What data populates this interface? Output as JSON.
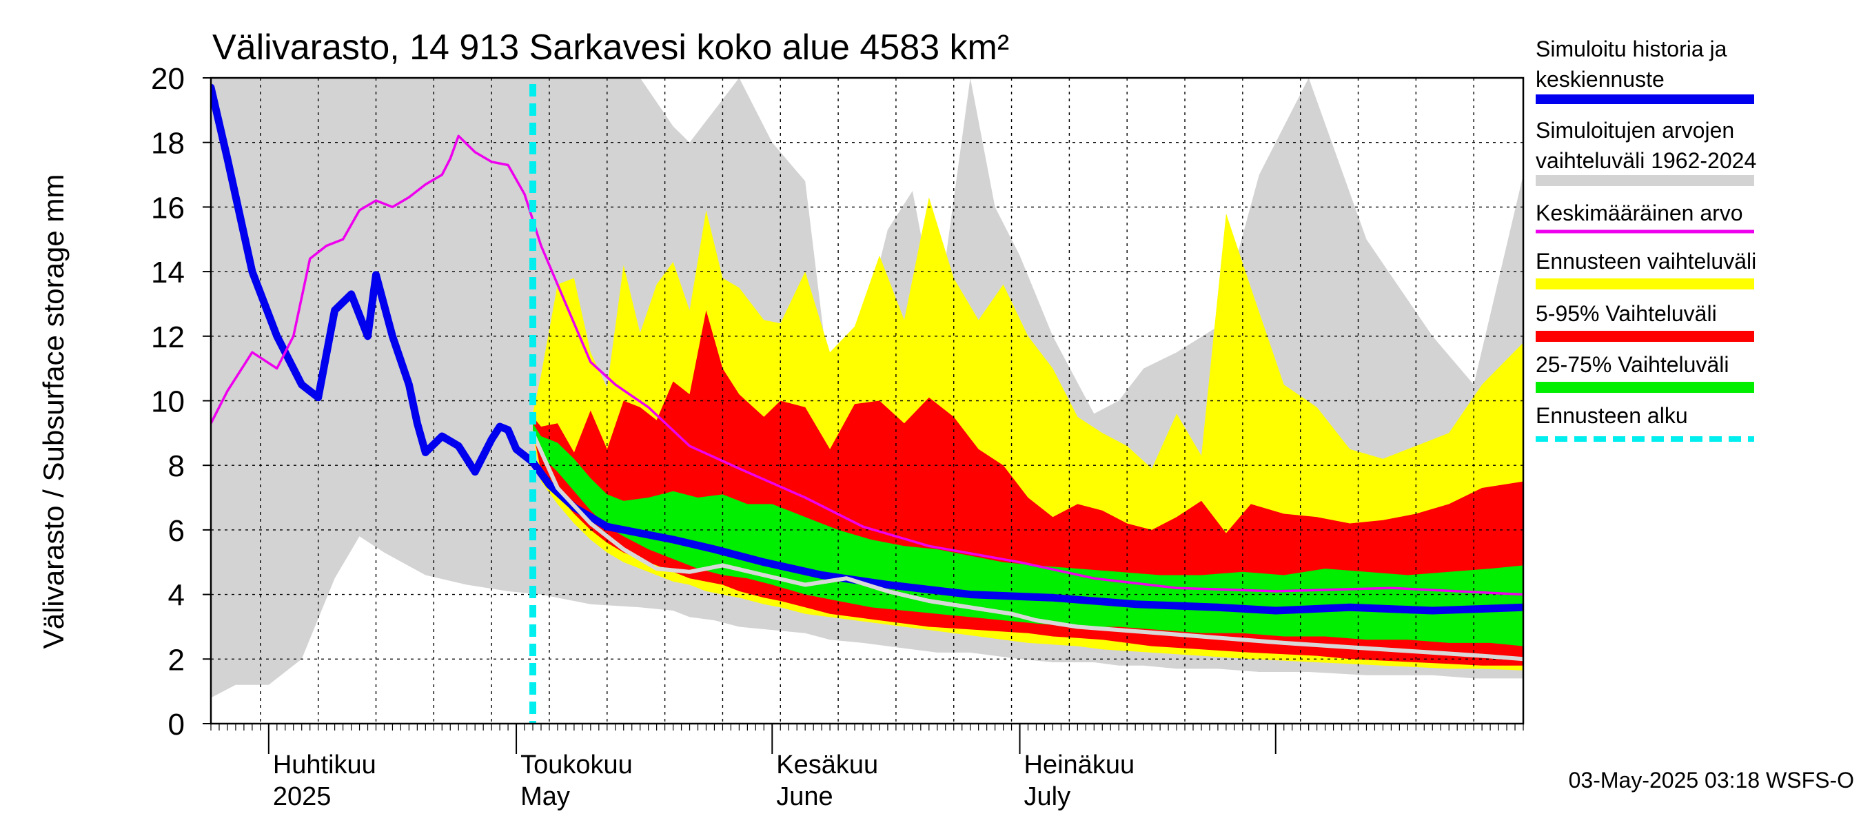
{
  "chart_data": {
    "type": "area",
    "title": "Välivarasto, 14 913 Sarkavesi koko alue 4583 km²",
    "ylabel": "Välivarasto / Subsurface storage  mm",
    "ylim": [
      0,
      20
    ],
    "yticks": [
      "0",
      "2",
      "4",
      "6",
      "8",
      "10",
      "12",
      "14",
      "16",
      "18",
      "20"
    ],
    "x_start": "2025-03-25",
    "x_end": "2025-08-31",
    "forecast_start": "2025-05-03",
    "grid": true,
    "legend_position": "right",
    "month_labels": [
      {
        "date": "2025-04-01",
        "line1": "Huhtikuu",
        "line2": "2025"
      },
      {
        "date": "2025-05-01",
        "line1": "Toukokuu",
        "line2": "May"
      },
      {
        "date": "2025-06-01",
        "line1": "Kesäkuu",
        "line2": "June"
      },
      {
        "date": "2025-07-01",
        "line1": "Heinäkuu",
        "line2": "July"
      }
    ],
    "series": [
      {
        "name": "Simuloitu historia ja keskiennuste",
        "kind": "line",
        "color": "#0000ee",
        "x": [
          "2025-03-25",
          "2025-03-27",
          "2025-03-30",
          "2025-04-02",
          "2025-04-05",
          "2025-04-07",
          "2025-04-09",
          "2025-04-11",
          "2025-04-13",
          "2025-04-14",
          "2025-04-16",
          "2025-04-18",
          "2025-04-19",
          "2025-04-20",
          "2025-04-22",
          "2025-04-24",
          "2025-04-26",
          "2025-04-28",
          "2025-04-29",
          "2025-04-30",
          "2025-05-01",
          "2025-05-03",
          "2025-05-05",
          "2025-05-08",
          "2025-05-12",
          "2025-05-16",
          "2025-05-20",
          "2025-05-25",
          "2025-05-31",
          "2025-06-07",
          "2025-06-15",
          "2025-06-25",
          "2025-07-05",
          "2025-07-15",
          "2025-07-25",
          "2025-08-01",
          "2025-08-10",
          "2025-08-20",
          "2025-08-31"
        ],
        "values": [
          19.7,
          17.5,
          14.0,
          12.0,
          10.5,
          10.1,
          12.8,
          13.3,
          12.0,
          13.9,
          12.0,
          10.5,
          9.3,
          8.4,
          8.9,
          8.6,
          7.8,
          8.8,
          9.2,
          9.1,
          8.5,
          8.1,
          7.4,
          6.7,
          6.1,
          5.9,
          5.7,
          5.4,
          5.0,
          4.6,
          4.3,
          4.0,
          3.9,
          3.7,
          3.6,
          3.5,
          3.6,
          3.5,
          3.6
        ]
      },
      {
        "name": "Keskimääräinen arvo",
        "kind": "line",
        "color": "#ee00ee",
        "x": [
          "2025-03-25",
          "2025-03-27",
          "2025-03-30",
          "2025-04-02",
          "2025-04-04",
          "2025-04-06",
          "2025-04-08",
          "2025-04-10",
          "2025-04-12",
          "2025-04-14",
          "2025-04-16",
          "2025-04-18",
          "2025-04-20",
          "2025-04-22",
          "2025-04-23",
          "2025-04-24",
          "2025-04-26",
          "2025-04-28",
          "2025-04-30",
          "2025-05-02",
          "2025-05-04",
          "2025-05-07",
          "2025-05-10",
          "2025-05-13",
          "2025-05-17",
          "2025-05-22",
          "2025-05-28",
          "2025-06-05",
          "2025-06-12",
          "2025-06-20",
          "2025-07-01",
          "2025-07-10",
          "2025-07-20",
          "2025-08-01",
          "2025-08-15",
          "2025-08-31"
        ],
        "values": [
          9.3,
          10.3,
          11.5,
          11.0,
          12.0,
          14.4,
          14.8,
          15.0,
          15.9,
          16.2,
          16.0,
          16.3,
          16.7,
          17.0,
          17.5,
          18.2,
          17.7,
          17.4,
          17.3,
          16.4,
          14.8,
          13.0,
          11.2,
          10.5,
          9.8,
          8.6,
          7.9,
          7.0,
          6.1,
          5.5,
          5.0,
          4.5,
          4.2,
          4.1,
          4.2,
          4.0
        ]
      },
      {
        "name": "Simuloitujen arvojen vaihteluväli 1962-2024",
        "kind": "band",
        "color": "#d3d3d3",
        "x": [
          "2025-03-25",
          "2025-03-28",
          "2025-04-01",
          "2025-04-05",
          "2025-04-09",
          "2025-04-12",
          "2025-04-15",
          "2025-04-20",
          "2025-04-25",
          "2025-04-30",
          "2025-05-04",
          "2025-05-10",
          "2025-05-16",
          "2025-05-20",
          "2025-05-22",
          "2025-05-25",
          "2025-05-28",
          "2025-06-01",
          "2025-06-05",
          "2025-06-08",
          "2025-06-12",
          "2025-06-15",
          "2025-06-18",
          "2025-06-21",
          "2025-06-25",
          "2025-06-28",
          "2025-07-01",
          "2025-07-05",
          "2025-07-10",
          "2025-07-13",
          "2025-07-16",
          "2025-07-20",
          "2025-07-25",
          "2025-07-30",
          "2025-08-05",
          "2025-08-12",
          "2025-08-20",
          "2025-08-25",
          "2025-08-31"
        ],
        "low": [
          0.8,
          1.2,
          1.2,
          2.0,
          4.5,
          5.8,
          5.3,
          4.6,
          4.3,
          4.1,
          4.0,
          3.7,
          3.6,
          3.5,
          3.3,
          3.2,
          3.0,
          2.9,
          2.8,
          2.6,
          2.5,
          2.4,
          2.3,
          2.2,
          2.2,
          2.1,
          2.0,
          1.9,
          1.9,
          1.8,
          1.8,
          1.7,
          1.7,
          1.6,
          1.6,
          1.5,
          1.5,
          1.4,
          1.4
        ],
        "high": [
          20,
          20,
          20,
          20,
          20,
          20,
          20,
          20,
          20,
          20,
          20,
          20,
          20,
          18.5,
          18.0,
          19.0,
          20,
          18.0,
          16.8,
          10.5,
          12.2,
          15.3,
          16.5,
          12.5,
          20,
          16.0,
          14.5,
          12.0,
          9.6,
          10.0,
          11.0,
          11.5,
          12.3,
          17.0,
          20,
          15.0,
          12.0,
          10.5,
          17.0
        ]
      },
      {
        "name": "Ennusteen vaihteluväli",
        "kind": "band",
        "color": "#ffff00",
        "x": [
          "2025-05-03",
          "2025-05-04",
          "2025-05-06",
          "2025-05-08",
          "2025-05-10",
          "2025-05-12",
          "2025-05-14",
          "2025-05-16",
          "2025-05-18",
          "2025-05-20",
          "2025-05-22",
          "2025-05-24",
          "2025-05-26",
          "2025-05-28",
          "2025-05-31",
          "2025-06-02",
          "2025-06-05",
          "2025-06-08",
          "2025-06-11",
          "2025-06-14",
          "2025-06-17",
          "2025-06-20",
          "2025-06-23",
          "2025-06-26",
          "2025-06-29",
          "2025-07-02",
          "2025-07-05",
          "2025-07-08",
          "2025-07-11",
          "2025-07-14",
          "2025-07-17",
          "2025-07-20",
          "2025-07-23",
          "2025-07-26",
          "2025-07-29",
          "2025-08-02",
          "2025-08-06",
          "2025-08-10",
          "2025-08-14",
          "2025-08-18",
          "2025-08-22",
          "2025-08-26",
          "2025-08-31"
        ],
        "low": [
          9.0,
          7.5,
          6.8,
          6.2,
          5.7,
          5.3,
          5.0,
          4.8,
          4.6,
          4.4,
          4.3,
          4.1,
          4.0,
          3.9,
          3.7,
          3.6,
          3.4,
          3.3,
          3.2,
          3.1,
          3.0,
          2.9,
          2.8,
          2.7,
          2.6,
          2.5,
          2.45,
          2.4,
          2.3,
          2.25,
          2.2,
          2.15,
          2.1,
          2.05,
          2.0,
          1.95,
          1.9,
          1.85,
          1.8,
          1.75,
          1.7,
          1.7,
          1.65
        ],
        "high": [
          9.6,
          10.8,
          13.6,
          13.8,
          11.5,
          10.4,
          14.2,
          12.1,
          13.6,
          14.3,
          12.8,
          15.9,
          13.8,
          13.5,
          12.5,
          12.4,
          14.0,
          11.5,
          12.3,
          14.5,
          12.5,
          16.3,
          13.8,
          12.5,
          13.6,
          12.0,
          11.0,
          9.5,
          9.0,
          8.6,
          7.9,
          9.6,
          8.3,
          15.8,
          13.5,
          10.5,
          9.8,
          8.5,
          8.2,
          8.6,
          9.0,
          10.5,
          11.8
        ]
      },
      {
        "name": "5-95% Vaihteluväli",
        "kind": "band",
        "color": "#ff0000",
        "x": [
          "2025-05-03",
          "2025-05-04",
          "2025-05-06",
          "2025-05-08",
          "2025-05-10",
          "2025-05-12",
          "2025-05-14",
          "2025-05-16",
          "2025-05-18",
          "2025-05-20",
          "2025-05-22",
          "2025-05-24",
          "2025-05-26",
          "2025-05-28",
          "2025-05-31",
          "2025-06-02",
          "2025-06-05",
          "2025-06-08",
          "2025-06-11",
          "2025-06-14",
          "2025-06-17",
          "2025-06-20",
          "2025-06-23",
          "2025-06-26",
          "2025-06-29",
          "2025-07-02",
          "2025-07-05",
          "2025-07-08",
          "2025-07-11",
          "2025-07-14",
          "2025-07-17",
          "2025-07-20",
          "2025-07-23",
          "2025-07-26",
          "2025-07-29",
          "2025-08-02",
          "2025-08-06",
          "2025-08-10",
          "2025-08-14",
          "2025-08-18",
          "2025-08-22",
          "2025-08-26",
          "2025-08-31"
        ],
        "low": [
          9.1,
          7.8,
          7.1,
          6.5,
          6.0,
          5.6,
          5.3,
          5.1,
          4.9,
          4.7,
          4.5,
          4.4,
          4.3,
          4.1,
          3.9,
          3.8,
          3.6,
          3.4,
          3.3,
          3.2,
          3.1,
          3.0,
          2.95,
          2.9,
          2.85,
          2.8,
          2.7,
          2.65,
          2.6,
          2.5,
          2.4,
          2.35,
          2.3,
          2.25,
          2.2,
          2.15,
          2.1,
          2.0,
          1.95,
          1.9,
          1.85,
          1.8,
          1.8
        ],
        "high": [
          9.5,
          9.2,
          9.3,
          8.4,
          9.7,
          8.5,
          10.0,
          9.8,
          9.4,
          10.6,
          10.2,
          12.8,
          11.0,
          10.2,
          9.5,
          10.0,
          9.8,
          8.5,
          9.9,
          10.0,
          9.3,
          10.1,
          9.5,
          8.5,
          8.0,
          7.0,
          6.4,
          6.8,
          6.6,
          6.2,
          6.0,
          6.4,
          6.9,
          5.9,
          6.8,
          6.5,
          6.4,
          6.2,
          6.3,
          6.5,
          6.8,
          7.3,
          7.5
        ]
      },
      {
        "name": "25-75% Vaihteluväli",
        "kind": "band",
        "color": "#00ee00",
        "x": [
          "2025-05-03",
          "2025-05-04",
          "2025-05-06",
          "2025-05-08",
          "2025-05-10",
          "2025-05-12",
          "2025-05-14",
          "2025-05-17",
          "2025-05-20",
          "2025-05-23",
          "2025-05-26",
          "2025-05-29",
          "2025-06-01",
          "2025-06-05",
          "2025-06-09",
          "2025-06-13",
          "2025-06-17",
          "2025-06-21",
          "2025-06-25",
          "2025-06-29",
          "2025-07-03",
          "2025-07-08",
          "2025-07-13",
          "2025-07-18",
          "2025-07-23",
          "2025-07-28",
          "2025-08-02",
          "2025-08-07",
          "2025-08-12",
          "2025-08-17",
          "2025-08-22",
          "2025-08-27",
          "2025-08-31"
        ],
        "low": [
          9.1,
          8.3,
          7.8,
          7.2,
          6.6,
          6.1,
          5.8,
          5.4,
          5.1,
          4.8,
          4.6,
          4.5,
          4.3,
          4.0,
          3.8,
          3.6,
          3.5,
          3.4,
          3.3,
          3.2,
          3.1,
          3.0,
          3.0,
          2.9,
          2.8,
          2.8,
          2.7,
          2.7,
          2.6,
          2.6,
          2.5,
          2.5,
          2.4
        ],
        "high": [
          9.3,
          8.9,
          8.7,
          8.2,
          7.6,
          7.1,
          6.9,
          7.0,
          7.2,
          7.0,
          7.1,
          6.8,
          6.8,
          6.4,
          6.0,
          5.7,
          5.5,
          5.4,
          5.2,
          5.0,
          4.9,
          4.8,
          4.7,
          4.6,
          4.6,
          4.7,
          4.6,
          4.8,
          4.7,
          4.6,
          4.7,
          4.8,
          4.9
        ]
      },
      {
        "name": "",
        "kind": "line",
        "color": "#d8d8d8",
        "x": [
          "2025-05-03",
          "2025-05-06",
          "2025-05-10",
          "2025-05-14",
          "2025-05-18",
          "2025-05-22",
          "2025-05-26",
          "2025-05-31",
          "2025-06-05",
          "2025-06-10",
          "2025-06-15",
          "2025-06-20",
          "2025-06-25",
          "2025-06-30",
          "2025-07-03",
          "2025-07-08",
          "2025-07-13",
          "2025-07-18",
          "2025-07-23",
          "2025-07-28",
          "2025-08-02",
          "2025-08-08",
          "2025-08-14",
          "2025-08-20",
          "2025-08-26",
          "2025-08-31"
        ],
        "values": [
          9.0,
          7.3,
          6.2,
          5.4,
          4.8,
          4.7,
          4.9,
          4.6,
          4.3,
          4.5,
          4.1,
          3.8,
          3.6,
          3.4,
          3.2,
          3.0,
          2.9,
          2.8,
          2.7,
          2.6,
          2.5,
          2.4,
          2.3,
          2.2,
          2.1,
          2.0
        ]
      }
    ],
    "legend": [
      {
        "label": "Simuloitu historia ja keskiennuste",
        "color": "#0000ee",
        "style": "line-thick"
      },
      {
        "label": "Simuloitujen arvojen vaihteluväli 1962-2024",
        "color": "#d3d3d3",
        "style": "band"
      },
      {
        "label": "Keskimääräinen arvo",
        "color": "#ee00ee",
        "style": "line-thin"
      },
      {
        "label": "Ennusteen vaihteluväli",
        "color": "#ffff00",
        "style": "band"
      },
      {
        "label": "5-95% Vaihteluväli",
        "color": "#ff0000",
        "style": "band"
      },
      {
        "label": "25-75% Vaihteluväli",
        "color": "#00ee00",
        "style": "band"
      },
      {
        "label": "Ennusteen alku",
        "color": "#00eeee",
        "style": "dashed"
      }
    ]
  },
  "footer": "03-May-2025 03:18 WSFS-O"
}
